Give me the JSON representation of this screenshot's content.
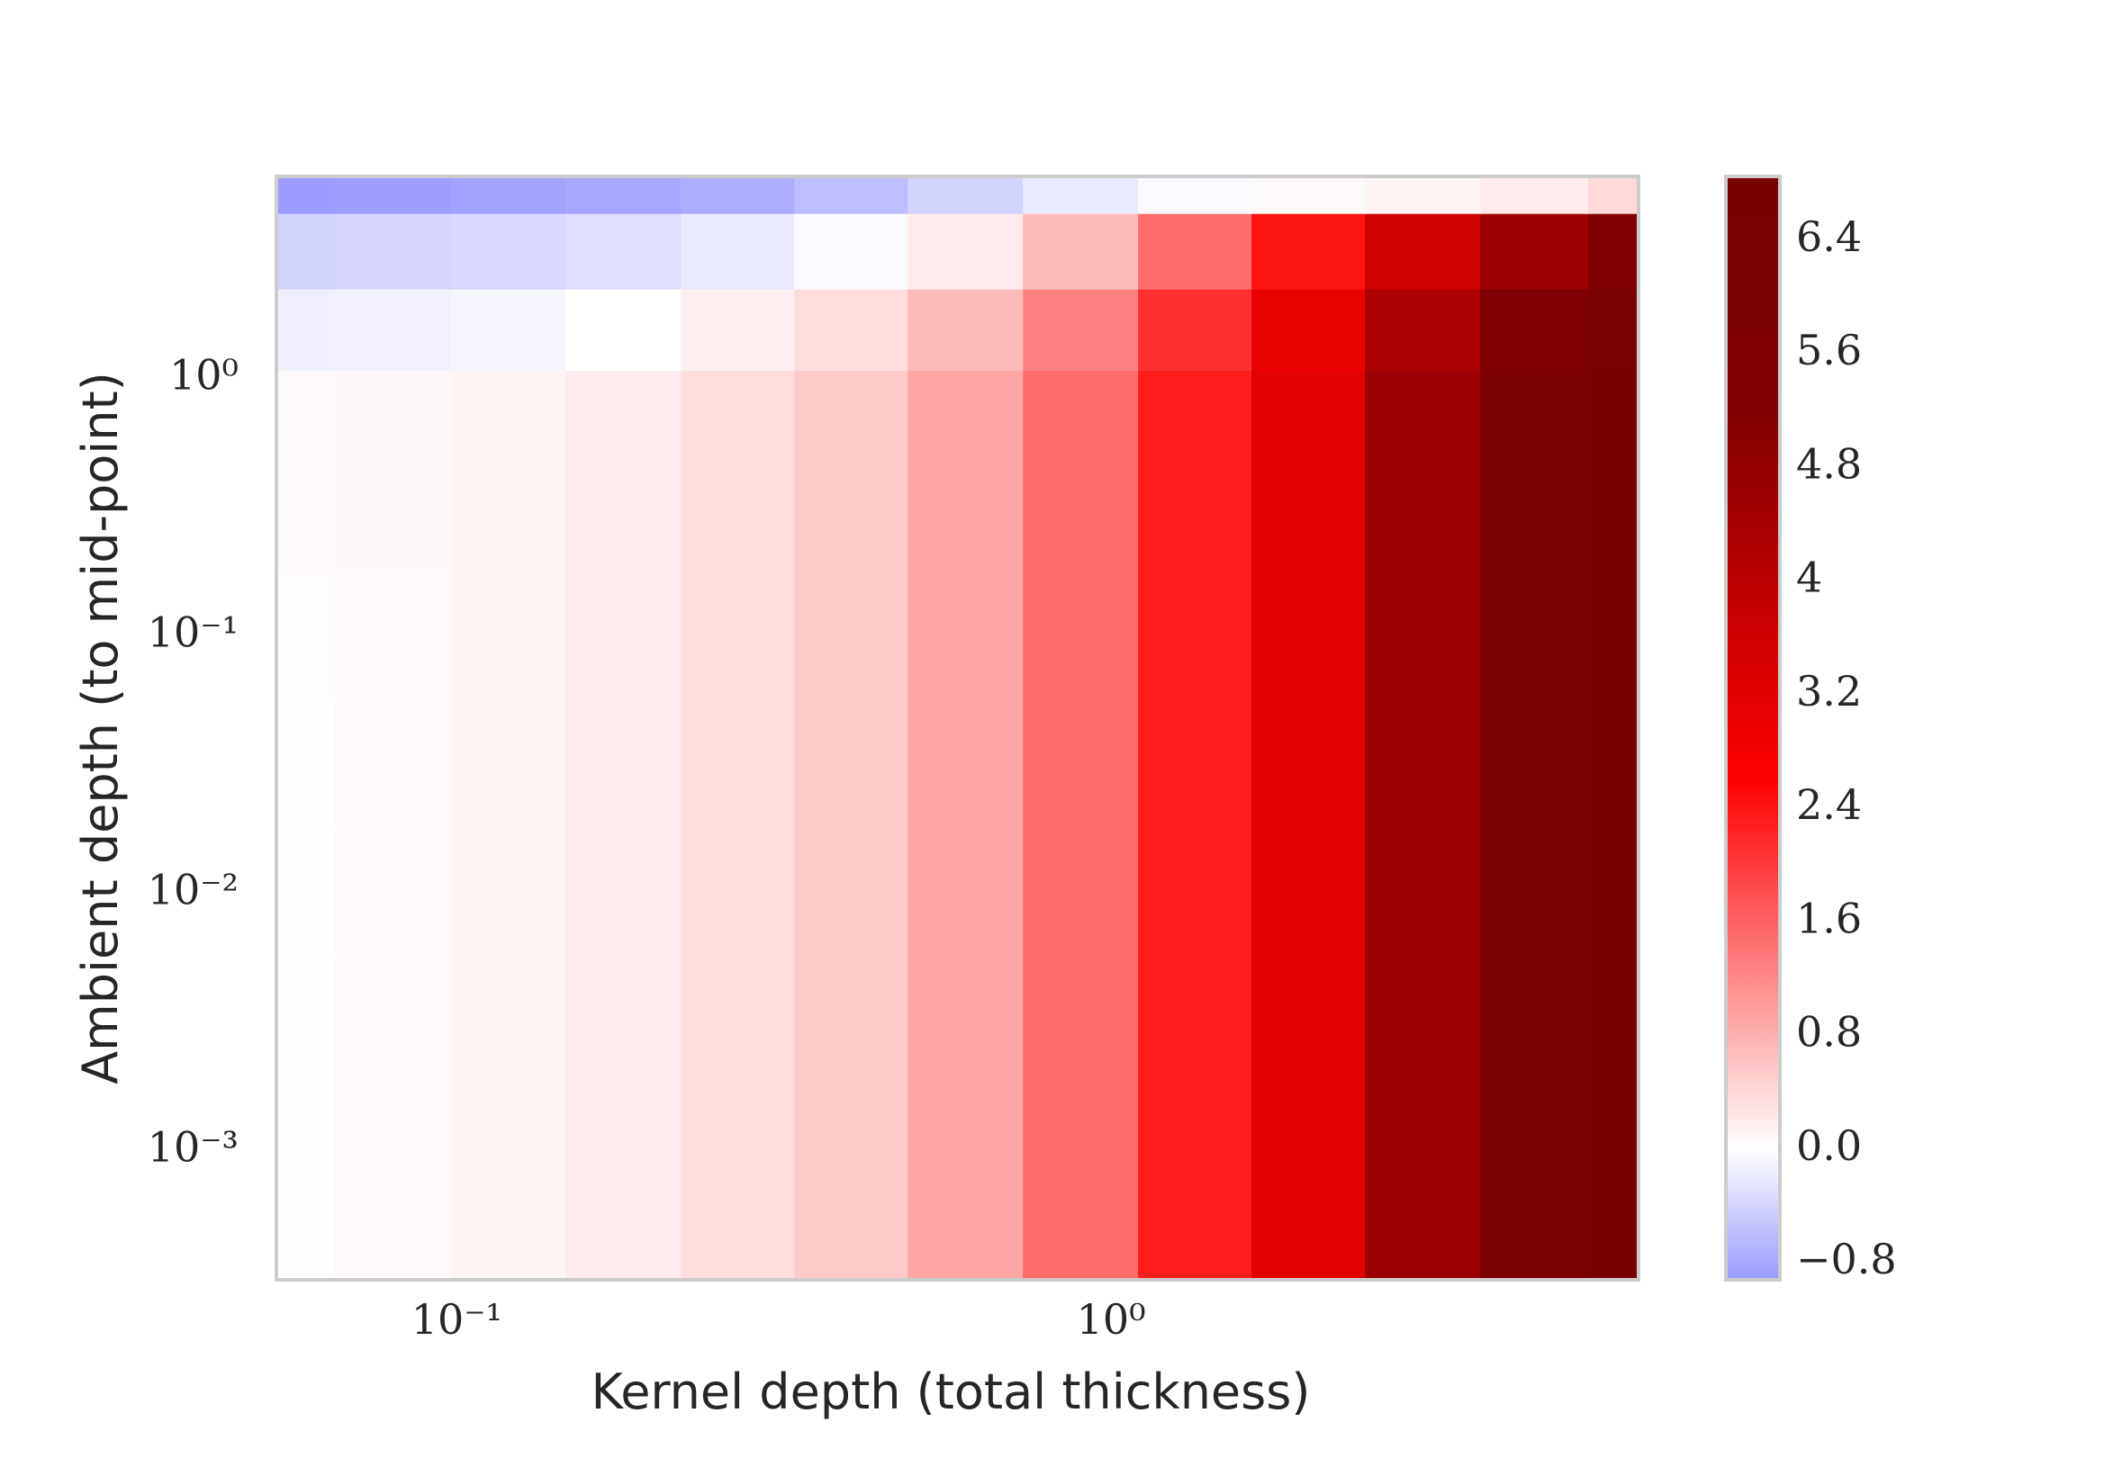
{
  "chart_data": {
    "type": "contourf",
    "xlabel": "Kernel depth (total thickness)",
    "ylabel": "Ambient depth (to mid-point)",
    "x_scale": "log",
    "y_scale": "log",
    "grid": false,
    "xlim": [
      0.053,
      6.4
    ],
    "ylim": [
      0.0003,
      5.8
    ],
    "xticks": [
      {
        "value": 0.1,
        "label": "10⁻¹"
      },
      {
        "value": 1,
        "label": "10⁰"
      }
    ],
    "yticks": [
      {
        "value": 0.001,
        "label": "10⁻³"
      },
      {
        "value": 0.01,
        "label": "10⁻²"
      },
      {
        "value": 0.1,
        "label": "10⁻¹"
      },
      {
        "value": 1,
        "label": "10⁰"
      }
    ],
    "x": [
      0.053,
      0.08,
      0.12,
      0.18,
      0.27,
      0.4,
      0.6,
      0.9,
      1.35,
      2,
      3,
      4.5,
      6.4
    ],
    "y": [
      0.0003,
      0.001,
      0.003,
      0.01,
      0.03,
      0.1,
      0.3,
      0.7,
      1.5,
      3,
      5.8
    ],
    "z": [
      [
        0.02,
        0.05,
        0.1,
        0.2,
        0.35,
        0.55,
        0.9,
        1.5,
        2.3,
        3.2,
        4.6,
        5.8,
        6.7
      ],
      [
        0.02,
        0.05,
        0.1,
        0.2,
        0.35,
        0.55,
        0.9,
        1.5,
        2.3,
        3.2,
        4.6,
        5.8,
        6.7
      ],
      [
        0.02,
        0.05,
        0.1,
        0.2,
        0.35,
        0.55,
        0.9,
        1.5,
        2.3,
        3.2,
        4.6,
        5.8,
        6.7
      ],
      [
        0.02,
        0.05,
        0.1,
        0.2,
        0.35,
        0.55,
        0.9,
        1.5,
        2.3,
        3.2,
        4.6,
        5.8,
        6.7
      ],
      [
        0.02,
        0.05,
        0.1,
        0.2,
        0.35,
        0.55,
        0.9,
        1.5,
        2.3,
        3.2,
        4.6,
        5.8,
        6.7
      ],
      [
        0.03,
        0.06,
        0.1,
        0.2,
        0.35,
        0.55,
        0.9,
        1.5,
        2.3,
        3.2,
        4.6,
        5.8,
        6.7
      ],
      [
        0.05,
        0.07,
        0.1,
        0.2,
        0.35,
        0.55,
        0.9,
        1.5,
        2.3,
        3.2,
        4.6,
        5.8,
        6.7
      ],
      [
        0.05,
        0.07,
        0.1,
        0.2,
        0.35,
        0.55,
        0.9,
        1.5,
        2.3,
        3.2,
        4.6,
        5.8,
        6.7
      ],
      [
        -0.15,
        -0.12,
        -0.08,
        0.0,
        0.15,
        0.35,
        0.7,
        1.3,
        2.1,
        3.0,
        4.3,
        5.5,
        6.4
      ],
      [
        -0.4,
        -0.38,
        -0.35,
        -0.3,
        -0.2,
        -0.05,
        0.2,
        0.7,
        1.5,
        2.4,
        3.6,
        4.6,
        5.4
      ],
      [
        -0.9,
        -0.88,
        -0.85,
        -0.8,
        -0.75,
        -0.6,
        -0.4,
        -0.2,
        -0.05,
        0.05,
        0.1,
        0.2,
        0.4
      ]
    ],
    "clim": [
      -0.92,
      6.85
    ],
    "colormap": [
      [
        -0.92,
        "#9a9aff"
      ],
      [
        0,
        "#ffffff"
      ],
      [
        2.6,
        "#ff0000"
      ],
      [
        5.2,
        "#800000"
      ],
      [
        6.85,
        "#780000"
      ]
    ],
    "cbar_ticks": [
      {
        "value": -0.8,
        "label": "−0.8"
      },
      {
        "value": 0,
        "label": "0.0"
      },
      0.8,
      1.6,
      2.4,
      3.2,
      4.0,
      4.8,
      5.6,
      6.4
    ]
  }
}
